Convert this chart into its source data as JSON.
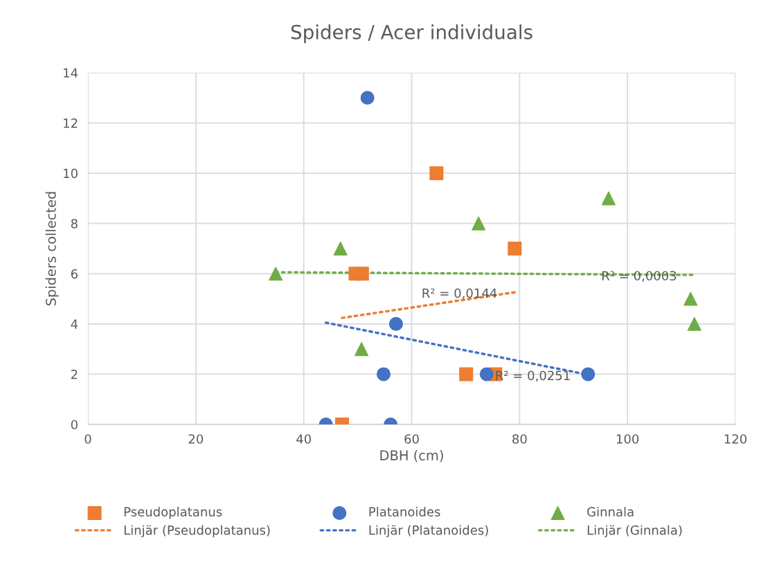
{
  "chart_data": {
    "type": "scatter",
    "title": "Spiders / Acer individuals",
    "xlabel": "DBH (cm)",
    "ylabel": "Spiders collected",
    "xlim": [
      0,
      120
    ],
    "xticks": [
      0,
      20,
      40,
      60,
      80,
      100,
      120
    ],
    "ylim": [
      0,
      14
    ],
    "yticks": [
      0,
      2,
      4,
      6,
      8,
      10,
      12,
      14
    ],
    "grid": true,
    "legend": "bottom",
    "series": [
      {
        "name": "Pseudoplatanus",
        "color": "#ed7d31",
        "marker": "square",
        "x": [
          47.1,
          49.6,
          50.8,
          64.6,
          79.1,
          70.1,
          75.5
        ],
        "values": [
          0,
          6,
          6,
          10,
          7,
          2,
          2
        ]
      },
      {
        "name": "Platanoides",
        "color": "#4472c4",
        "marker": "circle",
        "x": [
          44.1,
          51.8,
          57.1,
          54.8,
          56.1,
          73.9,
          92.7
        ],
        "values": [
          0,
          13,
          4,
          2,
          0,
          2,
          2
        ]
      },
      {
        "name": "Ginnala",
        "color": "#70ad47",
        "marker": "triangle",
        "x": [
          34.8,
          46.8,
          50.7,
          72.4,
          96.5,
          111.7,
          112.4
        ],
        "values": [
          6,
          7,
          3,
          8,
          9,
          5,
          4
        ]
      },
      {
        "name": "Linjär (Pseudoplatanus)",
        "type": "line",
        "color": "#ed7d31",
        "line_style": "dotted",
        "marker": "none",
        "x": [
          47.1,
          79.1
        ],
        "values": [
          4.24,
          5.26
        ]
      },
      {
        "name": "Linjär (Platanoides)",
        "type": "line",
        "color": "#4472c4",
        "line_style": "dotted",
        "marker": "none",
        "x": [
          44.1,
          92.7
        ],
        "values": [
          4.05,
          1.98
        ]
      },
      {
        "name": "Linjär (Ginnala)",
        "type": "line",
        "color": "#70ad47",
        "line_style": "dotted",
        "marker": "none",
        "x": [
          34.8,
          112.4
        ],
        "values": [
          6.06,
          5.95
        ]
      }
    ],
    "annotations": [
      "R² = 0,0144",
      "R² = 0,0251",
      "R² = 0,0003"
    ]
  }
}
